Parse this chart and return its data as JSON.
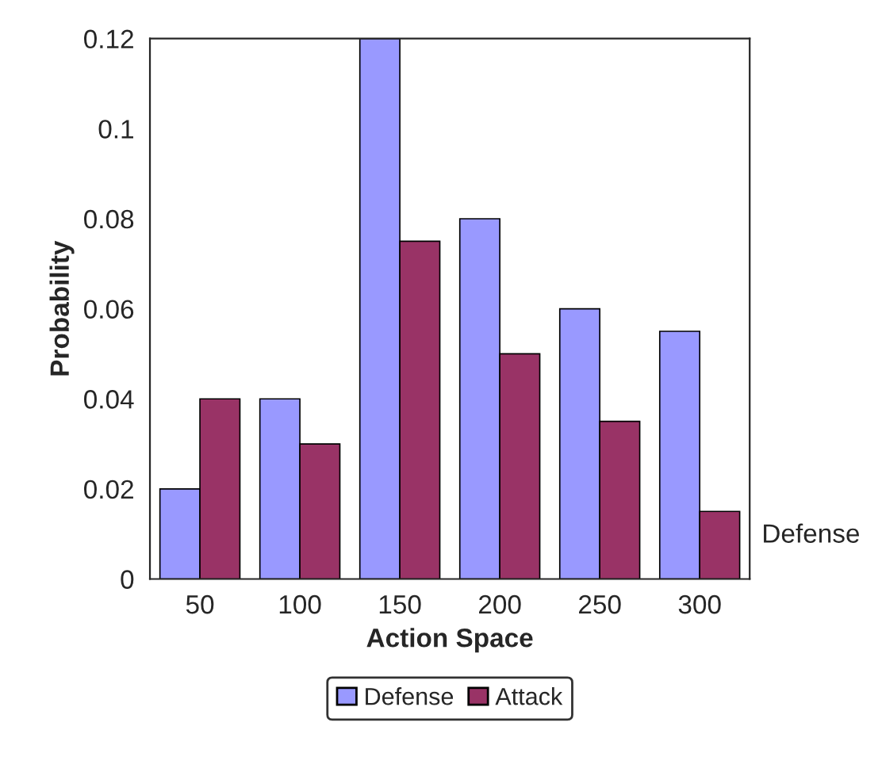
{
  "chart_data": {
    "type": "bar",
    "xlabel": "Action Space",
    "ylabel": "Probability",
    "categories": [
      "50",
      "100",
      "150",
      "200",
      "250",
      "300"
    ],
    "series": [
      {
        "name": "Defense",
        "color": "#9999ff",
        "values": [
          0.02,
          0.04,
          0.12,
          0.08,
          0.06,
          0.055
        ]
      },
      {
        "name": "Attack",
        "color": "#993366",
        "values": [
          0.04,
          0.03,
          0.075,
          0.05,
          0.035,
          0.015
        ]
      }
    ],
    "ylim": [
      0,
      0.12
    ],
    "yticks": [
      0,
      0.02,
      0.04,
      0.06,
      0.08,
      0.1,
      0.12
    ],
    "annotations": [
      "Defense"
    ],
    "legend": "bottom",
    "grid": false
  }
}
